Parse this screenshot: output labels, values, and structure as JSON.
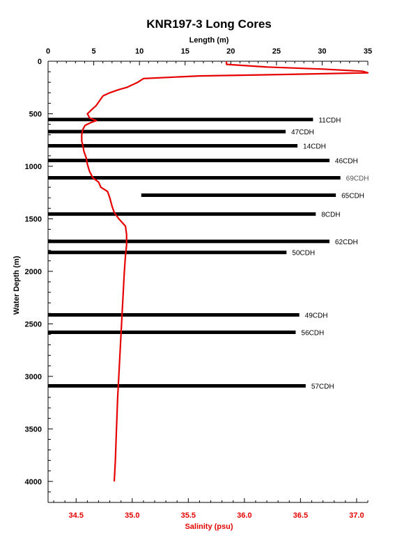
{
  "chart_data": {
    "type": "line",
    "title": "KNR197-3 Long Cores",
    "top_axis": {
      "label": "Length (m)",
      "range": [
        0,
        35
      ],
      "ticks": [
        0,
        5,
        10,
        15,
        20,
        25,
        30,
        35
      ]
    },
    "bottom_axis": {
      "label": "Salinity (psu)",
      "range": [
        34.25,
        37.1
      ],
      "ticks": [
        "34.5",
        "35.0",
        "35.5",
        "36.0",
        "36.5",
        "37.0"
      ],
      "color": "#e60000"
    },
    "y_axis": {
      "label": "Water Depth (m)",
      "range": [
        0,
        4200
      ],
      "inverted": true,
      "ticks": [
        0,
        500,
        1000,
        1500,
        2000,
        2500,
        3000,
        3500,
        4000
      ]
    },
    "cores": [
      {
        "name": "11CDH",
        "depth": 555,
        "length_start": 0,
        "length_end": 29
      },
      {
        "name": "47CDH",
        "depth": 670,
        "length_start": 0,
        "length_end": 26
      },
      {
        "name": "14CDH",
        "depth": 805,
        "length_start": 0,
        "length_end": 27.3
      },
      {
        "name": "46CDH",
        "depth": 945,
        "length_start": 0,
        "length_end": 30.8
      },
      {
        "name": "69CDH",
        "depth": 1110,
        "length_start": 0,
        "length_end": 32
      },
      {
        "name": "65CDH",
        "depth": 1275,
        "length_start": 10.2,
        "length_end": 31.5
      },
      {
        "name": "8CDH",
        "depth": 1455,
        "length_start": 0,
        "length_end": 29.3
      },
      {
        "name": "62CDH",
        "depth": 1715,
        "length_start": 0,
        "length_end": 30.8
      },
      {
        "name": "50CDH",
        "depth": 1820,
        "length_start": 0,
        "length_end": 26.1
      },
      {
        "name": "49CDH",
        "depth": 2415,
        "length_start": 0,
        "length_end": 27.5
      },
      {
        "name": "56CDH",
        "depth": 2580,
        "length_start": 0,
        "length_end": 27.1
      },
      {
        "name": "57CDH",
        "depth": 3090,
        "length_start": 0,
        "length_end": 28.2
      }
    ],
    "salinity_profile": {
      "color": "#e60000",
      "points": [
        [
          35.84,
          0
        ],
        [
          35.84,
          30
        ],
        [
          36.2,
          55
        ],
        [
          36.7,
          75
        ],
        [
          37.05,
          95
        ],
        [
          37.1,
          110
        ],
        [
          36.4,
          125
        ],
        [
          35.6,
          140
        ],
        [
          35.1,
          165
        ],
        [
          35.05,
          200
        ],
        [
          34.95,
          250
        ],
        [
          34.88,
          270
        ],
        [
          34.8,
          300
        ],
        [
          34.74,
          330
        ],
        [
          34.72,
          360
        ],
        [
          34.68,
          420
        ],
        [
          34.63,
          470
        ],
        [
          34.6,
          500
        ],
        [
          34.62,
          540
        ],
        [
          34.68,
          565
        ],
        [
          34.64,
          580
        ],
        [
          34.58,
          610
        ],
        [
          34.56,
          650
        ],
        [
          34.55,
          700
        ],
        [
          34.55,
          760
        ],
        [
          34.56,
          800
        ],
        [
          34.57,
          860
        ],
        [
          34.59,
          920
        ],
        [
          34.6,
          980
        ],
        [
          34.62,
          1050
        ],
        [
          34.65,
          1110
        ],
        [
          34.7,
          1150
        ],
        [
          34.72,
          1200
        ],
        [
          34.78,
          1240
        ],
        [
          34.8,
          1300
        ],
        [
          34.82,
          1380
        ],
        [
          34.84,
          1440
        ],
        [
          34.88,
          1500
        ],
        [
          34.94,
          1570
        ],
        [
          34.95,
          1650
        ],
        [
          34.95,
          1750
        ],
        [
          34.94,
          1850
        ],
        [
          34.93,
          2000
        ],
        [
          34.92,
          2200
        ],
        [
          34.91,
          2400
        ],
        [
          34.9,
          2600
        ],
        [
          34.89,
          2800
        ],
        [
          34.88,
          3000
        ],
        [
          34.87,
          3200
        ],
        [
          34.86,
          3500
        ],
        [
          34.85,
          3800
        ],
        [
          34.84,
          4000
        ]
      ]
    }
  }
}
